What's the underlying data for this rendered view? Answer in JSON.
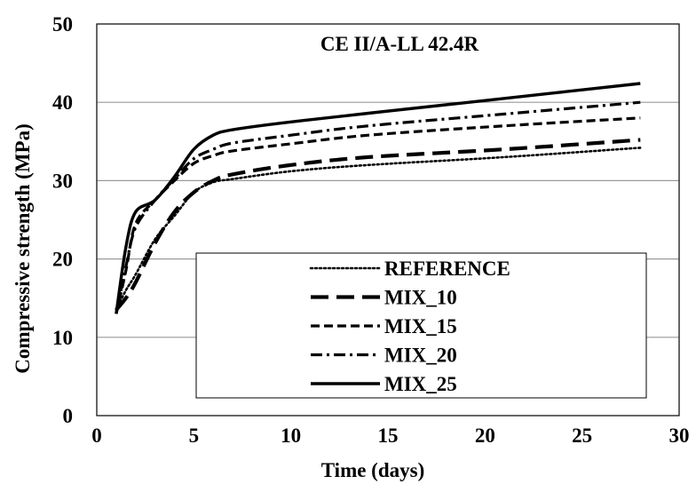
{
  "chart_data": {
    "type": "line",
    "title": "CE II/A-LL 42.4R",
    "xlabel": "Time (days)",
    "ylabel": "Compressive strength (MPa)",
    "xlim": [
      0,
      30
    ],
    "ylim": [
      0,
      50
    ],
    "xticks": [
      0,
      5,
      10,
      15,
      20,
      25,
      30
    ],
    "yticks": [
      0,
      10,
      20,
      30,
      40,
      50
    ],
    "grid": "horizontal",
    "legend_position": "bottom-right",
    "series": [
      {
        "name": "REFERENCE",
        "dash": "dotted",
        "x": [
          1,
          1.5,
          2,
          3,
          4,
          5,
          6,
          7,
          10,
          14,
          21,
          28
        ],
        "y": [
          13.5,
          16,
          18,
          22.5,
          25.5,
          28.5,
          29.8,
          30.2,
          31.2,
          32.0,
          33.0,
          34.2
        ]
      },
      {
        "name": "MIX_10",
        "dash": "long-dash",
        "x": [
          1,
          1.5,
          2,
          3,
          4,
          5,
          6,
          7,
          10,
          14,
          21,
          28
        ],
        "y": [
          13.5,
          15,
          17,
          22,
          26,
          28.5,
          30,
          30.8,
          32,
          33,
          34,
          35.2
        ]
      },
      {
        "name": "MIX_15",
        "dash": "dash",
        "x": [
          1,
          1.5,
          2,
          3,
          4,
          5,
          6,
          7,
          10,
          14,
          21,
          28
        ],
        "y": [
          13,
          18.5,
          24.5,
          27.5,
          30,
          32.2,
          33.2,
          33.8,
          34.7,
          35.8,
          37,
          38
        ]
      },
      {
        "name": "MIX_20",
        "dash": "dash-dot",
        "x": [
          1,
          1.5,
          2,
          3,
          4,
          5,
          6,
          7,
          10,
          14,
          21,
          28
        ],
        "y": [
          13,
          19,
          24,
          27.5,
          30.2,
          32.8,
          34,
          34.8,
          35.8,
          37,
          38.5,
          40
        ]
      },
      {
        "name": "MIX_25",
        "dash": "solid",
        "x": [
          1,
          1.5,
          2,
          3,
          4,
          5,
          6,
          7,
          10,
          14,
          21,
          28
        ],
        "y": [
          13,
          21.5,
          26,
          27.5,
          30.5,
          34,
          35.8,
          36.5,
          37.5,
          38.6,
          40.5,
          42.4
        ]
      }
    ]
  }
}
